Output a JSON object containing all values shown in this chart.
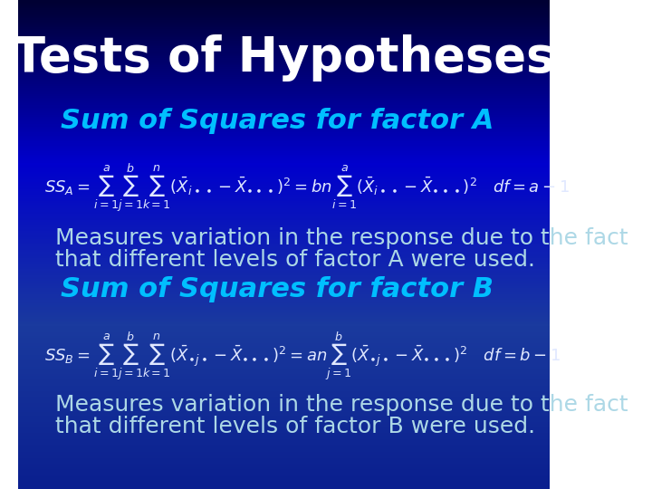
{
  "title": "Tests of Hypotheses",
  "title_fontsize": 38,
  "title_color": "white",
  "title_fontstyle": "bold",
  "subtitle_A": "Sum of Squares for factor A",
  "subtitle_B": "Sum of Squares for factor B",
  "subtitle_fontsize": 22,
  "subtitle_color": "#00BFFF",
  "subtitle_fontstyle": "bold italic",
  "text_color": "#ADD8E6",
  "text_fontsize": 18,
  "text_A1": "Measures variation in the response due to the fact",
  "text_A2": "that different levels of factor A were used.",
  "text_B1": "Measures variation in the response due to the fact",
  "text_B2": "that different levels of factor B were used.",
  "bg_color_top": "#000033",
  "bg_color_mid": "#0000AA",
  "bg_color_bot": "#0033CC",
  "formula_color": "#E0E8FF",
  "formula_fontsize": 16
}
